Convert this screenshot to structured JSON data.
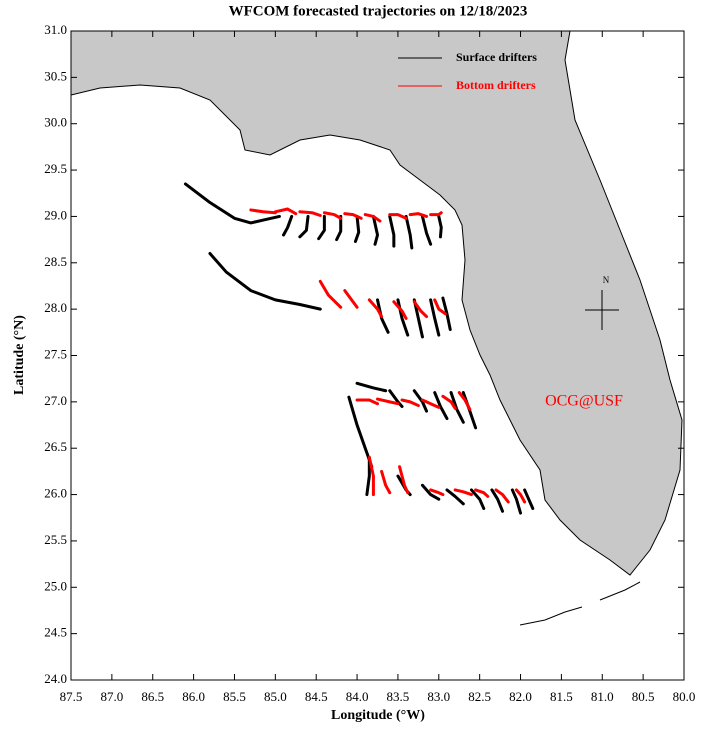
{
  "chart_data": {
    "type": "trajectory-map",
    "title": "WFCOM forecasted trajectories on 12/18/2023",
    "x_label": "Longitude (°W)",
    "y_label": "Latitude (°N)",
    "annotation": "OCG@USF",
    "compass_label": "N",
    "xlim": [
      87.5,
      80
    ],
    "ylim": [
      24,
      31
    ],
    "xticks": [
      87.5,
      {
        "value": 87,
        "label": "87.0"
      },
      86.5,
      {
        "value": 86,
        "label": "86.0"
      },
      85.5,
      {
        "value": 85,
        "label": "85.0"
      },
      84.5,
      {
        "value": 84,
        "label": "84.0"
      },
      83.5,
      {
        "value": 83,
        "label": "83.0"
      },
      82.5,
      {
        "value": 82,
        "label": "82.0"
      },
      81.5,
      {
        "value": 81,
        "label": "81.0"
      },
      80.5,
      {
        "value": 80,
        "label": "80.0"
      }
    ],
    "yticks": [
      {
        "value": 24,
        "label": "24.0"
      },
      24.5,
      {
        "value": 25,
        "label": "25.0"
      },
      25.5,
      {
        "value": 26,
        "label": "26.0"
      },
      26.5,
      {
        "value": 27,
        "label": "27.0"
      },
      27.5,
      {
        "value": 28,
        "label": "28.0"
      },
      28.5,
      {
        "value": 29,
        "label": "29.0"
      },
      29.5,
      {
        "value": 30,
        "label": "30.0"
      },
      30.5,
      {
        "value": 31,
        "label": "31.0"
      }
    ],
    "legend": "upper right",
    "series": [
      {
        "name": "Surface drifters",
        "color": "#000000",
        "tracks": [
          {
            "x": [
              86.1,
              85.8,
              85.5,
              85.3,
              85.1,
              84.95
            ],
            "y": [
              29.35,
              29.15,
              28.98,
              28.93,
              28.97,
              29.0
            ]
          },
          {
            "x": [
              84.8,
              84.85,
              84.9
            ],
            "y": [
              29.0,
              28.88,
              28.8
            ]
          },
          {
            "x": [
              84.6,
              84.62,
              84.7
            ],
            "y": [
              29.0,
              28.85,
              28.78
            ]
          },
          {
            "x": [
              84.4,
              84.4,
              84.47
            ],
            "y": [
              29.0,
              28.85,
              28.76
            ]
          },
          {
            "x": [
              84.2,
              84.2,
              84.25
            ],
            "y": [
              29.0,
              28.84,
              28.75
            ]
          },
          {
            "x": [
              84.0,
              83.98,
              84.02
            ],
            "y": [
              29.0,
              28.83,
              28.73
            ]
          },
          {
            "x": [
              83.8,
              83.75,
              83.78
            ],
            "y": [
              29.0,
              28.8,
              28.7
            ]
          },
          {
            "x": [
              83.6,
              83.55,
              83.55
            ],
            "y": [
              29.0,
              28.8,
              28.68
            ]
          },
          {
            "x": [
              83.4,
              83.35,
              83.33
            ],
            "y": [
              29.0,
              28.8,
              28.66
            ]
          },
          {
            "x": [
              83.2,
              83.15,
              83.1
            ],
            "y": [
              29.0,
              28.82,
              28.7
            ]
          },
          {
            "x": [
              83.0,
              82.97,
              82.98
            ],
            "y": [
              29.0,
              28.88,
              28.78
            ]
          },
          {
            "x": [
              85.8,
              85.6,
              85.3,
              85.0,
              84.7,
              84.45
            ],
            "y": [
              28.6,
              28.4,
              28.2,
              28.1,
              28.05,
              28.0
            ]
          },
          {
            "x": [
              83.75,
              83.7,
              83.62
            ],
            "y": [
              28.1,
              27.9,
              27.75
            ]
          },
          {
            "x": [
              83.5,
              83.45,
              83.38
            ],
            "y": [
              28.1,
              27.9,
              27.72
            ]
          },
          {
            "x": [
              83.3,
              83.25,
              83.2
            ],
            "y": [
              28.1,
              27.9,
              27.7
            ]
          },
          {
            "x": [
              83.1,
              83.05,
              83.0
            ],
            "y": [
              28.1,
              27.9,
              27.72
            ]
          },
          {
            "x": [
              82.95,
              82.9,
              82.86
            ],
            "y": [
              28.12,
              27.95,
              27.78
            ]
          },
          {
            "x": [
              84.0,
              83.8,
              83.65
            ],
            "y": [
              27.2,
              27.15,
              27.12
            ]
          },
          {
            "x": [
              83.6,
              83.5,
              83.45
            ],
            "y": [
              27.12,
              27.0,
              26.95
            ]
          },
          {
            "x": [
              83.3,
              83.2,
              83.15
            ],
            "y": [
              27.12,
              27.0,
              26.9
            ]
          },
          {
            "x": [
              83.05,
              82.98,
              82.9
            ],
            "y": [
              27.1,
              26.95,
              26.82
            ]
          },
          {
            "x": [
              82.85,
              82.78,
              82.7
            ],
            "y": [
              27.1,
              26.92,
              26.78
            ]
          },
          {
            "x": [
              82.7,
              82.62,
              82.55
            ],
            "y": [
              27.1,
              26.9,
              26.72
            ]
          },
          {
            "x": [
              84.1,
              84.0,
              83.9,
              83.82
            ],
            "y": [
              27.05,
              26.75,
              26.5,
              26.3
            ]
          },
          {
            "x": [
              83.85,
              83.85,
              83.88
            ],
            "y": [
              26.4,
              26.2,
              26.0
            ]
          },
          {
            "x": [
              83.5,
              83.4,
              83.35
            ],
            "y": [
              26.2,
              26.05,
              26.0
            ]
          },
          {
            "x": [
              83.2,
              83.1,
              83.0
            ],
            "y": [
              26.1,
              26.0,
              25.95
            ]
          },
          {
            "x": [
              82.9,
              82.8,
              82.7
            ],
            "y": [
              26.05,
              25.98,
              25.9
            ]
          },
          {
            "x": [
              82.6,
              82.5,
              82.45
            ],
            "y": [
              26.05,
              25.95,
              25.85
            ]
          },
          {
            "x": [
              82.35,
              82.28,
              82.22
            ],
            "y": [
              26.05,
              25.95,
              25.82
            ]
          },
          {
            "x": [
              82.1,
              82.05,
              82.0
            ],
            "y": [
              26.05,
              25.95,
              25.8
            ]
          },
          {
            "x": [
              81.95,
              81.9,
              81.85
            ],
            "y": [
              26.05,
              25.95,
              25.85
            ]
          }
        ]
      },
      {
        "name": "Bottom drifters",
        "color": "#ff0000",
        "tracks": [
          {
            "x": [
              85.3,
              85.15,
              85.0
            ],
            "y": [
              29.07,
              29.05,
              29.04
            ]
          },
          {
            "x": [
              85.0,
              84.85,
              84.75
            ],
            "y": [
              29.05,
              29.08,
              29.03
            ]
          },
          {
            "x": [
              84.7,
              84.55,
              84.45
            ],
            "y": [
              29.05,
              29.04,
              29.01
            ]
          },
          {
            "x": [
              84.4,
              84.28,
              84.2
            ],
            "y": [
              29.04,
              29.02,
              28.98
            ]
          },
          {
            "x": [
              84.15,
              84.05,
              83.95
            ],
            "y": [
              29.03,
              29.02,
              28.98
            ]
          },
          {
            "x": [
              83.9,
              83.8,
              83.72
            ],
            "y": [
              29.02,
              29.0,
              28.95
            ]
          },
          {
            "x": [
              83.6,
              83.5,
              83.4
            ],
            "y": [
              29.02,
              29.02,
              28.98
            ]
          },
          {
            "x": [
              83.35,
              83.25,
              83.15
            ],
            "y": [
              29.02,
              29.03,
              29.0
            ]
          },
          {
            "x": [
              83.1,
              83.0,
              82.97
            ],
            "y": [
              29.02,
              29.02,
              29.04
            ]
          },
          {
            "x": [
              84.45,
              84.35,
              84.2
            ],
            "y": [
              28.3,
              28.15,
              28.02
            ]
          },
          {
            "x": [
              84.15,
              84.05,
              84.0
            ],
            "y": [
              28.2,
              28.08,
              28.02
            ]
          },
          {
            "x": [
              83.85,
              83.75,
              83.7
            ],
            "y": [
              28.1,
              28.0,
              27.92
            ]
          },
          {
            "x": [
              83.55,
              83.45,
              83.4
            ],
            "y": [
              28.08,
              27.98,
              27.9
            ]
          },
          {
            "x": [
              83.3,
              83.22,
              83.15
            ],
            "y": [
              28.08,
              27.98,
              27.92
            ]
          },
          {
            "x": [
              83.05,
              83.0,
              82.92
            ],
            "y": [
              28.1,
              28.0,
              27.95
            ]
          },
          {
            "x": [
              84.0,
              83.85,
              83.75
            ],
            "y": [
              27.02,
              27.02,
              26.98
            ]
          },
          {
            "x": [
              83.75,
              83.6,
              83.5
            ],
            "y": [
              27.03,
              27.0,
              26.98
            ]
          },
          {
            "x": [
              83.45,
              83.35,
              83.25
            ],
            "y": [
              27.02,
              27.0,
              26.96
            ]
          },
          {
            "x": [
              83.2,
              83.1,
              83.0
            ],
            "y": [
              27.02,
              26.98,
              26.94
            ]
          },
          {
            "x": [
              82.95,
              82.85,
              82.8
            ],
            "y": [
              27.06,
              27.0,
              26.93
            ]
          },
          {
            "x": [
              82.75,
              82.68,
              82.62
            ],
            "y": [
              27.1,
              27.02,
              26.92
            ]
          },
          {
            "x": [
              83.85,
              83.8,
              83.8
            ],
            "y": [
              26.4,
              26.2,
              26.0
            ]
          },
          {
            "x": [
              83.7,
              83.65,
              83.6
            ],
            "y": [
              26.25,
              26.1,
              26.02
            ]
          },
          {
            "x": [
              83.48,
              83.42,
              83.38
            ],
            "y": [
              26.3,
              26.1,
              26.02
            ]
          },
          {
            "x": [
              83.1,
              83.0,
              82.95
            ],
            "y": [
              26.05,
              26.02,
              26.0
            ]
          },
          {
            "x": [
              82.8,
              82.7,
              82.6
            ],
            "y": [
              26.05,
              26.03,
              26.0
            ]
          },
          {
            "x": [
              82.55,
              82.45,
              82.4
            ],
            "y": [
              26.05,
              26.02,
              25.98
            ]
          },
          {
            "x": [
              82.3,
              82.22,
              82.15
            ],
            "y": [
              26.05,
              26.0,
              25.92
            ]
          },
          {
            "x": [
              82.05,
              82.0,
              81.95
            ],
            "y": [
              26.05,
              26.0,
              25.92
            ]
          }
        ]
      }
    ]
  }
}
